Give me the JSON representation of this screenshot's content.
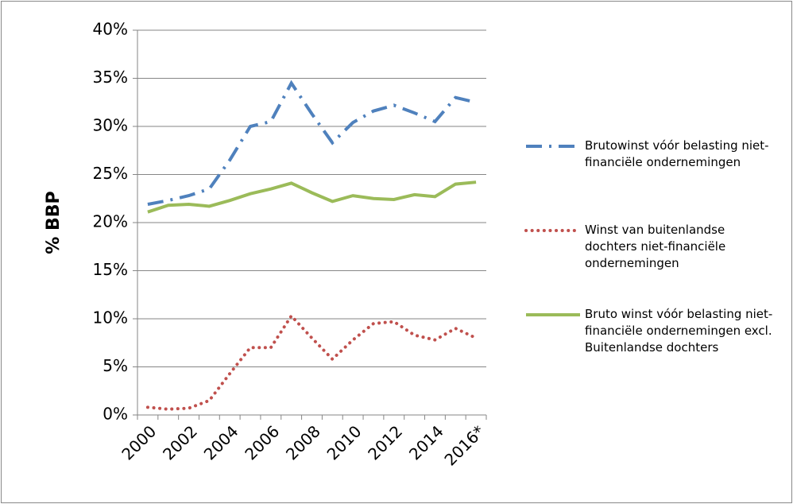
{
  "chart_data": {
    "type": "line",
    "ylabel": "% BBP",
    "categories": [
      "2000",
      null,
      "2002",
      null,
      "2004",
      null,
      "2006",
      null,
      "2008",
      null,
      "2010",
      null,
      "2012",
      null,
      "2014",
      null,
      "2016*"
    ],
    "series": [
      {
        "name": "Brutowinst vóór belasting niet-financiële ondernemingen",
        "color": "#4f81bd",
        "dash": "dashdot",
        "values": [
          21.9,
          22.3,
          22.8,
          23.5,
          26.5,
          30.0,
          30.5,
          34.5,
          31.3,
          28.3,
          30.4,
          31.6,
          32.2,
          31.4,
          30.5,
          33.0,
          32.5
        ]
      },
      {
        "name": "Winst van buitenlandse dochters niet-financiële ondernemingen",
        "color": "#c0504d",
        "dash": "dotted",
        "values": [
          0.8,
          0.6,
          0.7,
          1.5,
          4.3,
          7.0,
          7.0,
          10.3,
          8.0,
          5.8,
          7.8,
          9.5,
          9.7,
          8.3,
          7.8,
          9.0,
          8.0
        ]
      },
      {
        "name": "Bruto winst vóór belasting niet-financiële ondernemingen excl. Buitenlandse dochters",
        "color": "#9bbb59",
        "dash": "solid",
        "values": [
          21.1,
          21.8,
          21.9,
          21.7,
          22.3,
          23.0,
          23.5,
          24.1,
          23.1,
          22.2,
          22.8,
          22.5,
          22.4,
          22.9,
          22.7,
          24.0,
          24.2
        ]
      }
    ],
    "ylim": [
      0,
      40
    ],
    "yticks": [
      {
        "value": 0,
        "label": "0%"
      },
      {
        "value": 5,
        "label": "5%"
      },
      {
        "value": 10,
        "label": "10%"
      },
      {
        "value": 15,
        "label": "15%"
      },
      {
        "value": 20,
        "label": "20%"
      },
      {
        "value": 25,
        "label": "25%"
      },
      {
        "value": 30,
        "label": "30%"
      },
      {
        "value": 35,
        "label": "35%"
      },
      {
        "value": 40,
        "label": "40%"
      }
    ],
    "grid": true,
    "legend": "right"
  }
}
